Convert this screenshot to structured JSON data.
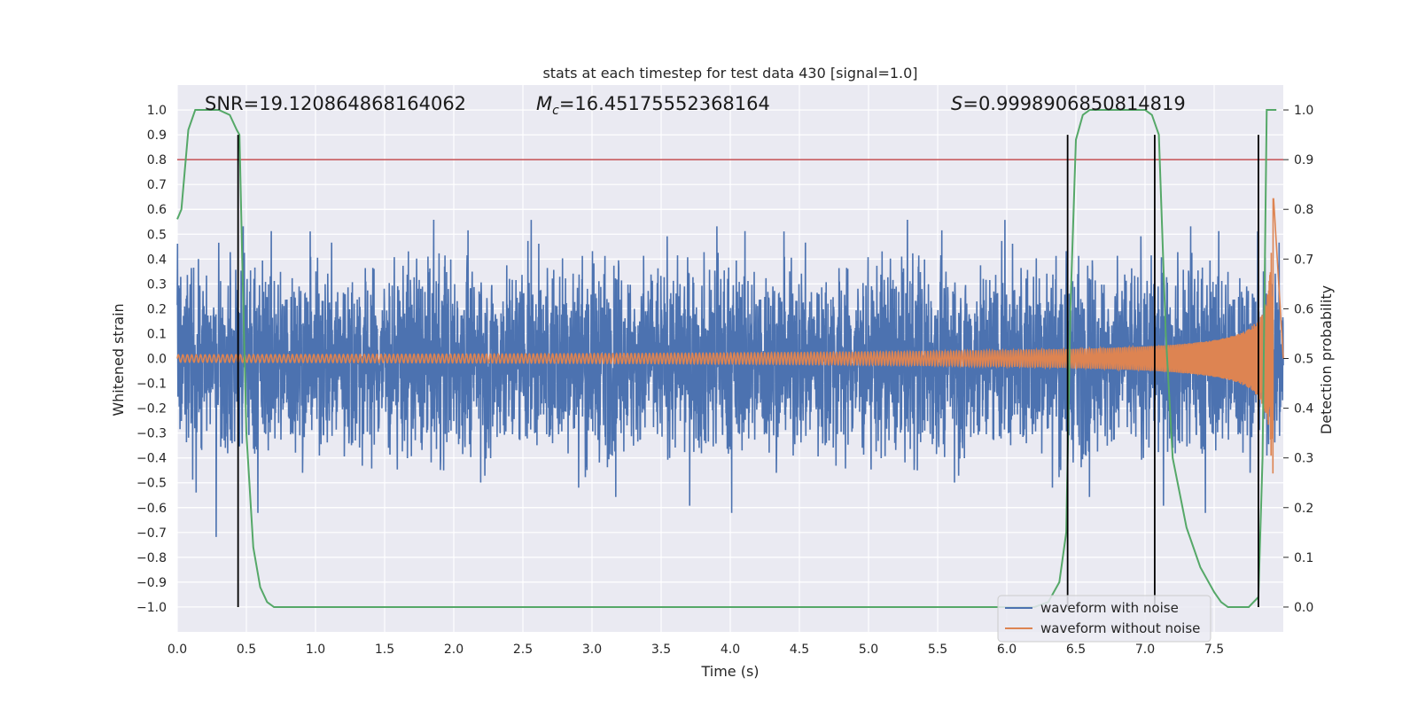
{
  "chart_data": {
    "type": "line",
    "title": "stats at each timestep for test data 430 [signal=1.0]",
    "xlabel": "Time (s)",
    "ylabel": "Whitened strain",
    "y2label": "Detection probability",
    "xlim": [
      0.0,
      8.0
    ],
    "ylim": [
      -1.1,
      1.1
    ],
    "y2lim": [
      -0.05,
      1.05
    ],
    "x_ticks": [
      0.0,
      0.5,
      1.0,
      1.5,
      2.0,
      2.5,
      3.0,
      3.5,
      4.0,
      4.5,
      5.0,
      5.5,
      6.0,
      6.5,
      7.0,
      7.5
    ],
    "y_ticks": [
      -1.0,
      -0.9,
      -0.8,
      -0.7,
      -0.6,
      -0.5,
      -0.4,
      -0.3,
      -0.2,
      -0.1,
      0.0,
      0.1,
      0.2,
      0.3,
      0.4,
      0.5,
      0.6,
      0.7,
      0.8,
      0.9,
      1.0
    ],
    "y2_ticks": [
      0.0,
      0.1,
      0.2,
      0.3,
      0.4,
      0.5,
      0.6,
      0.7,
      0.8,
      0.9,
      1.0
    ],
    "grid": true,
    "legend_position": "lower-right",
    "annotations": {
      "snr": "SNR=19.120864868164062",
      "mc_symbol": "M",
      "mc_subscript": "c",
      "mc_value": "=16.45175552368164",
      "s_symbol": "S",
      "s_value": "=0.9998906850814819"
    },
    "series": [
      {
        "name": "waveform with noise",
        "color": "#4c72b0",
        "kind": "noise-band",
        "band_half_width_typical": 0.45,
        "peak_min": -1.0,
        "peak_max": 0.83
      },
      {
        "name": "waveform without noise",
        "color": "#dd8452",
        "kind": "chirp",
        "amplitude_start": 0.015,
        "amplitude_end": 0.65,
        "merger_time": 7.93
      },
      {
        "color": "#55a868",
        "axis": "y2",
        "x": [
          0.0,
          0.03,
          0.08,
          0.13,
          0.2,
          0.3,
          0.38,
          0.43,
          0.45,
          0.47,
          0.5,
          0.55,
          0.6,
          0.65,
          0.7,
          1.0,
          2.0,
          3.0,
          4.0,
          5.0,
          5.5,
          5.8,
          6.0,
          6.2,
          6.3,
          6.38,
          6.43,
          6.46,
          6.5,
          6.55,
          6.6,
          6.7,
          6.8,
          6.9,
          7.0,
          7.05,
          7.1,
          7.15,
          7.2,
          7.3,
          7.4,
          7.5,
          7.55,
          7.6,
          7.7,
          7.75,
          7.82,
          7.85,
          7.88,
          7.92,
          7.95
        ],
        "values": [
          0.78,
          0.8,
          0.96,
          1.0,
          1.0,
          1.0,
          0.99,
          0.96,
          0.95,
          0.7,
          0.35,
          0.12,
          0.04,
          0.01,
          0.0,
          0.0,
          0.0,
          0.0,
          0.0,
          0.0,
          0.0,
          0.0,
          0.0,
          0.0,
          0.01,
          0.05,
          0.15,
          0.6,
          0.94,
          0.99,
          1.0,
          1.0,
          1.0,
          1.0,
          1.0,
          0.99,
          0.95,
          0.55,
          0.3,
          0.16,
          0.08,
          0.03,
          0.01,
          0.0,
          0.0,
          0.0,
          0.02,
          0.3,
          1.0,
          1.0,
          1.0
        ]
      }
    ],
    "threshold": {
      "value": 0.9,
      "axis": "y2",
      "color": "#c44e52"
    },
    "event_lines": {
      "times": [
        0.44,
        6.44,
        7.07,
        7.82
      ],
      "y_from": -1.0,
      "y_to": 0.9,
      "color": "#000000"
    }
  }
}
